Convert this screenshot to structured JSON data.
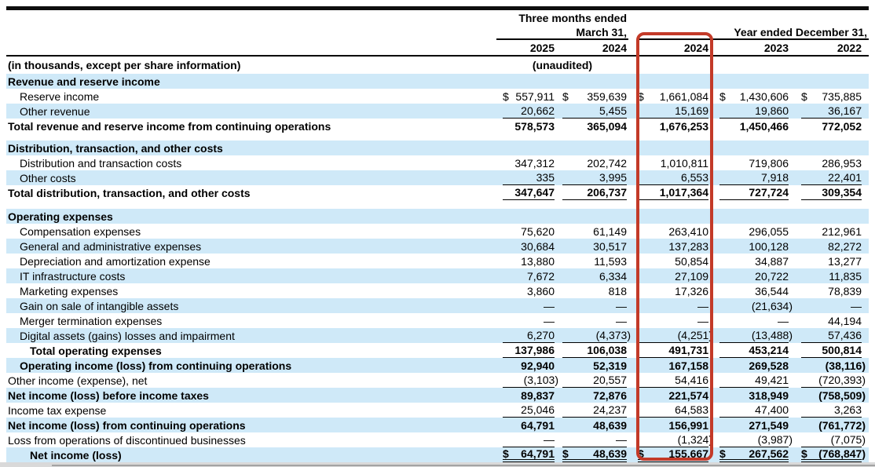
{
  "table": {
    "header": {
      "period_group_1_line1": "Three months ended",
      "period_group_1_line2": "March 31,",
      "period_group_2": "Year ended December 31,",
      "col_years": [
        "2025",
        "2024",
        "2024",
        "2023",
        "2022"
      ],
      "note_left": "(in thousands, except per share information)",
      "note_unaudited": "(unaudited)"
    },
    "colors": {
      "stripe": "#cfe9f8",
      "highlight_border": "#c33a28",
      "rule": "#000000"
    },
    "highlighted_column": "Year ended December 31, 2024",
    "rows": [
      {
        "label": "Revenue and reserve income",
        "indent": 0,
        "bold": true,
        "bg": "blue",
        "values": null
      },
      {
        "label": "Reserve income",
        "indent": 1,
        "bold": false,
        "bg": "white",
        "dollar": true,
        "values": [
          "557,911",
          "359,639",
          "1,661,084",
          "1,430,606",
          "735,885"
        ]
      },
      {
        "label": "Other revenue",
        "indent": 1,
        "bold": false,
        "bg": "blue",
        "underline": "single",
        "values": [
          "20,662",
          "5,455",
          "15,169",
          "19,860",
          "36,167"
        ]
      },
      {
        "label": "Total revenue and reserve income from continuing operations",
        "indent": 0,
        "bold": true,
        "bg": "white",
        "values": [
          "578,573",
          "365,094",
          "1,676,253",
          "1,450,466",
          "772,052"
        ]
      },
      {
        "spacer": 9
      },
      {
        "label": "Distribution, transaction, and other costs",
        "indent": 0,
        "bold": true,
        "bg": "blue",
        "values": null
      },
      {
        "label": "Distribution and transaction costs",
        "indent": 1,
        "bold": false,
        "bg": "white",
        "values": [
          "347,312",
          "202,742",
          "1,010,811",
          "719,806",
          "286,953"
        ]
      },
      {
        "label": "Other costs",
        "indent": 1,
        "bold": false,
        "bg": "blue",
        "underline": "single",
        "values": [
          "335",
          "3,995",
          "6,553",
          "7,918",
          "22,401"
        ]
      },
      {
        "label": "Total distribution, transaction, and other costs",
        "indent": 0,
        "bold": true,
        "bg": "white",
        "underline": "single",
        "values": [
          "347,647",
          "206,737",
          "1,017,364",
          "727,724",
          "309,354"
        ]
      },
      {
        "spacer": 11
      },
      {
        "label": "Operating expenses",
        "indent": 0,
        "bold": true,
        "bg": "blue",
        "values": null
      },
      {
        "label": "Compensation expenses",
        "indent": 1,
        "bold": false,
        "bg": "white",
        "values": [
          "75,620",
          "61,149",
          "263,410",
          "296,055",
          "212,961"
        ]
      },
      {
        "label": "General and administrative expenses",
        "indent": 1,
        "bold": false,
        "bg": "blue",
        "values": [
          "30,684",
          "30,517",
          "137,283",
          "100,128",
          "82,272"
        ]
      },
      {
        "label": "Depreciation and amortization expense",
        "indent": 1,
        "bold": false,
        "bg": "white",
        "values": [
          "13,880",
          "11,593",
          "50,854",
          "34,887",
          "13,277"
        ]
      },
      {
        "label": "IT infrastructure costs",
        "indent": 1,
        "bold": false,
        "bg": "blue",
        "values": [
          "7,672",
          "6,334",
          "27,109",
          "20,722",
          "11,835"
        ]
      },
      {
        "label": "Marketing expenses",
        "indent": 1,
        "bold": false,
        "bg": "white",
        "values": [
          "3,860",
          "818",
          "17,326",
          "36,544",
          "78,839"
        ]
      },
      {
        "label": "Gain on sale of intangible assets",
        "indent": 1,
        "bold": false,
        "bg": "blue",
        "values": [
          "—",
          "—",
          "—",
          "(21,634)",
          "—"
        ]
      },
      {
        "label": "Merger termination expenses",
        "indent": 1,
        "bold": false,
        "bg": "white",
        "values": [
          "—",
          "—",
          "—",
          "—",
          "44,194"
        ]
      },
      {
        "label": "Digital assets (gains) losses and impairment",
        "indent": 1,
        "bold": false,
        "bg": "blue",
        "underline": "single",
        "values": [
          "6,270",
          "(4,373)",
          "(4,251)",
          "(13,488)",
          "57,436"
        ]
      },
      {
        "label": "Total operating expenses",
        "indent": 2,
        "bold": true,
        "bg": "white",
        "underline": "single",
        "values": [
          "137,986",
          "106,038",
          "491,731",
          "453,214",
          "500,814"
        ]
      },
      {
        "label": "Operating income (loss) from continuing operations",
        "indent": 1,
        "bold": true,
        "bg": "blue",
        "values": [
          "92,940",
          "52,319",
          "167,158",
          "269,528",
          "(38,116)"
        ]
      },
      {
        "label": "Other income (expense), net",
        "indent": 0,
        "bold": false,
        "bg": "white",
        "underline": "single",
        "values": [
          "(3,103)",
          "20,557",
          "54,416",
          "49,421",
          "(720,393)"
        ]
      },
      {
        "label": "Net income (loss) before income taxes",
        "indent": 0,
        "bold": true,
        "bg": "blue",
        "values": [
          "89,837",
          "72,876",
          "221,574",
          "318,949",
          "(758,509)"
        ]
      },
      {
        "label": "Income tax expense",
        "indent": 0,
        "bold": false,
        "bg": "white",
        "underline": "single",
        "values": [
          "25,046",
          "24,237",
          "64,583",
          "47,400",
          "3,263"
        ]
      },
      {
        "label": "Net income (loss) from continuing operations",
        "indent": 0,
        "bold": true,
        "bg": "blue",
        "values": [
          "64,791",
          "48,639",
          "156,991",
          "271,549",
          "(761,772)"
        ]
      },
      {
        "label": "Loss from operations of discontinued businesses",
        "indent": 0,
        "bold": false,
        "bg": "white",
        "underline": "single",
        "values": [
          "—",
          "—",
          "(1,324)",
          "(3,987)",
          "(7,075)"
        ]
      },
      {
        "label": "Net income (loss)",
        "indent": 2,
        "bold": true,
        "bg": "blue",
        "dollar": true,
        "underline": "double",
        "values": [
          "64,791",
          "48,639",
          "155,667",
          "267,562",
          "(768,847)"
        ]
      }
    ]
  }
}
